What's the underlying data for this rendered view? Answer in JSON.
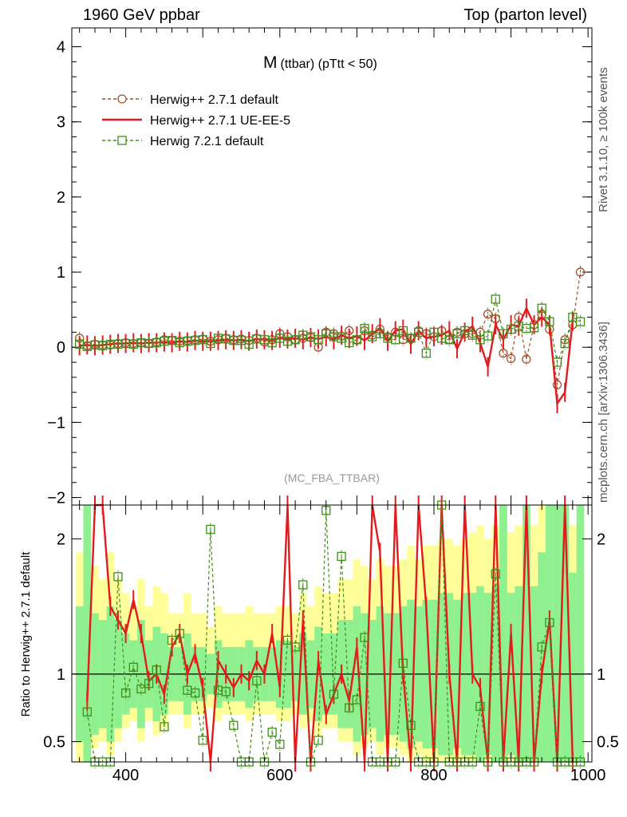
{
  "header": {
    "left": "1960 GeV ppbar",
    "right": "Top (parton level)",
    "side_top": "Rivet 3.1.10, ≥ 100k events",
    "side_bottom": "mcplots.cern.ch [arXiv:1306.3436]"
  },
  "colors": {
    "hpp_default": "#a0522d",
    "hpp_ueee5": "#e41a1c",
    "h7_default": "#3f8f1a",
    "band_yellow": "#ffff99",
    "band_green": "#8ef08e"
  },
  "chart_data": [
    {
      "type": "line",
      "title": "M (ttbar) (pTtt < 50)",
      "title_main": "M",
      "title_sub": "(ttbar) (pTtt < 50)",
      "watermark": "(MC_FBA_TTBAR)",
      "xlim": [
        330,
        1005
      ],
      "ylim": [
        -2.1,
        4.25
      ],
      "yticks": [
        -2,
        -1,
        0,
        1,
        2,
        3,
        4
      ],
      "ytick_labels": [
        "−2",
        "−1",
        "0",
        "1",
        "2",
        "3",
        "4"
      ],
      "legend_position": "top-left",
      "series": [
        {
          "name": "Herwig++ 2.7.1 default",
          "style": "dashed-circle",
          "color": "#a0522d",
          "x": [
            340,
            350,
            360,
            370,
            380,
            390,
            400,
            410,
            420,
            430,
            440,
            450,
            460,
            470,
            480,
            490,
            500,
            510,
            520,
            530,
            540,
            550,
            560,
            570,
            580,
            590,
            600,
            610,
            620,
            630,
            640,
            650,
            660,
            670,
            680,
            690,
            700,
            710,
            720,
            730,
            740,
            750,
            760,
            770,
            780,
            790,
            800,
            810,
            820,
            830,
            840,
            850,
            860,
            870,
            880,
            890,
            900,
            910,
            920,
            930,
            940,
            950,
            960,
            970,
            980,
            990
          ],
          "y": [
            0.12,
            0.02,
            0.04,
            0.03,
            0.03,
            0.05,
            0.06,
            0.05,
            0.06,
            0.05,
            0.07,
            0.1,
            0.09,
            0.08,
            0.09,
            0.1,
            0.11,
            0.08,
            0.1,
            0.12,
            0.1,
            0.11,
            0.09,
            0.12,
            0.07,
            0.1,
            0.18,
            0.14,
            0.1,
            0.12,
            0.13,
            0.0,
            0.2,
            0.18,
            0.15,
            0.22,
            0.1,
            0.22,
            0.16,
            0.24,
            0.14,
            0.2,
            0.1,
            0.12,
            0.22,
            0.18,
            0.14,
            0.22,
            0.1,
            0.2,
            0.18,
            0.18,
            0.2,
            0.44,
            0.38,
            -0.08,
            -0.15,
            0.4,
            -0.16,
            0.3,
            0.44,
            0.24,
            -0.5,
            0.1,
            0.3,
            1.0
          ]
        },
        {
          "name": "Herwig++ 2.7.1 UE-EE-5",
          "style": "solid",
          "color": "#e41a1c",
          "x": [
            340,
            350,
            360,
            370,
            380,
            390,
            400,
            410,
            420,
            430,
            440,
            450,
            460,
            470,
            480,
            490,
            500,
            510,
            520,
            530,
            540,
            550,
            560,
            570,
            580,
            590,
            600,
            610,
            620,
            630,
            640,
            650,
            660,
            670,
            680,
            690,
            700,
            710,
            720,
            730,
            740,
            750,
            760,
            770,
            780,
            790,
            800,
            810,
            820,
            830,
            840,
            850,
            860,
            870,
            880,
            890,
            900,
            910,
            920,
            930,
            940,
            950,
            960,
            970,
            980
          ],
          "y": [
            0.02,
            0.03,
            0.02,
            0.03,
            0.04,
            0.05,
            0.05,
            0.06,
            0.05,
            0.06,
            0.06,
            0.07,
            0.06,
            0.08,
            0.07,
            0.09,
            0.08,
            0.08,
            0.09,
            0.1,
            0.09,
            0.1,
            0.08,
            0.11,
            0.1,
            0.09,
            0.12,
            0.11,
            0.12,
            0.1,
            0.13,
            0.11,
            0.14,
            0.1,
            0.16,
            0.12,
            0.15,
            0.09,
            0.18,
            0.26,
            0.08,
            0.22,
            0.24,
            0.04,
            0.22,
            0.12,
            0.14,
            0.16,
            0.22,
            -0.02,
            0.2,
            0.28,
            0.06,
            -0.26,
            0.3,
            0.1,
            0.3,
            0.28,
            0.52,
            0.3,
            0.4,
            0.3,
            -0.75,
            -0.6,
            0.35
          ]
        },
        {
          "name": "Herwig 7.2.1 default",
          "style": "dashed-square",
          "color": "#3f8f1a",
          "x": [
            340,
            350,
            360,
            370,
            380,
            390,
            400,
            410,
            420,
            430,
            440,
            450,
            460,
            470,
            480,
            490,
            500,
            510,
            520,
            530,
            540,
            550,
            560,
            570,
            580,
            590,
            600,
            610,
            620,
            630,
            640,
            650,
            660,
            670,
            680,
            690,
            700,
            710,
            720,
            730,
            740,
            750,
            760,
            770,
            780,
            790,
            800,
            810,
            820,
            830,
            840,
            850,
            860,
            870,
            880,
            890,
            900,
            910,
            920,
            930,
            940,
            950,
            960,
            970,
            980,
            990
          ],
          "y": [
            0.04,
            0.01,
            0.03,
            0.02,
            0.04,
            0.04,
            0.05,
            0.04,
            0.06,
            0.05,
            0.06,
            0.08,
            0.09,
            0.06,
            0.08,
            0.09,
            0.1,
            0.05,
            0.12,
            0.11,
            0.09,
            0.09,
            0.04,
            0.11,
            0.1,
            0.06,
            0.12,
            0.08,
            0.1,
            0.16,
            0.14,
            0.1,
            0.18,
            0.14,
            0.12,
            0.06,
            0.1,
            0.25,
            0.14,
            0.18,
            0.12,
            0.1,
            0.22,
            0.12,
            0.2,
            -0.08,
            0.2,
            0.12,
            0.1,
            0.18,
            0.22,
            0.16,
            0.1,
            0.15,
            0.64,
            0.18,
            0.24,
            0.28,
            0.25,
            0.26,
            0.52,
            0.34,
            -0.2,
            0.05,
            0.4,
            0.34
          ]
        }
      ]
    },
    {
      "type": "line",
      "title": "",
      "ylabel": "Ratio to Herwig++ 2.7.1 default",
      "xlabel": "",
      "xlim": [
        330,
        1005
      ],
      "ylim": [
        0.35,
        2.25
      ],
      "xticks": [
        400,
        600,
        800,
        1000
      ],
      "xtick_labels": [
        "400",
        "600",
        "800",
        "1000"
      ],
      "yticks": [
        0.5,
        1,
        2
      ],
      "ytick_labels": [
        "0.5",
        "1",
        "2"
      ],
      "bands": {
        "x": [
          340,
          350,
          360,
          370,
          380,
          390,
          400,
          410,
          420,
          430,
          440,
          450,
          460,
          470,
          480,
          490,
          500,
          510,
          520,
          530,
          540,
          550,
          560,
          570,
          580,
          590,
          600,
          610,
          620,
          630,
          640,
          650,
          660,
          670,
          680,
          690,
          700,
          710,
          720,
          730,
          740,
          750,
          760,
          770,
          780,
          790,
          800,
          810,
          820,
          830,
          840,
          850,
          860,
          870,
          880,
          890,
          900,
          910,
          920,
          930,
          940,
          950,
          960,
          970,
          980,
          990
        ],
        "green_lo": [
          0.5,
          0.35,
          0.55,
          0.6,
          0.5,
          0.6,
          0.7,
          0.75,
          0.6,
          0.75,
          0.65,
          0.7,
          0.8,
          0.8,
          0.7,
          0.8,
          0.8,
          0.85,
          0.75,
          0.8,
          0.8,
          0.8,
          0.75,
          0.8,
          0.8,
          0.8,
          0.75,
          0.75,
          0.8,
          0.7,
          0.75,
          0.65,
          0.7,
          0.7,
          0.6,
          0.6,
          0.5,
          0.55,
          0.6,
          0.5,
          0.55,
          0.55,
          0.5,
          0.45,
          0.5,
          0.45,
          0.45,
          0.4,
          0.4,
          0.45,
          0.4,
          0.4,
          0.35,
          0.4,
          0.35,
          0.35,
          0.4,
          0.35,
          0.35,
          0.35,
          0.35,
          0.35,
          0.35,
          0.35,
          0.35,
          0.35
        ],
        "green_hi": [
          1.5,
          2.25,
          1.45,
          1.4,
          1.5,
          1.4,
          1.3,
          1.25,
          1.4,
          1.25,
          1.35,
          1.3,
          1.2,
          1.2,
          1.3,
          1.2,
          1.2,
          1.15,
          1.25,
          1.2,
          1.2,
          1.2,
          1.25,
          1.2,
          1.2,
          1.2,
          1.25,
          1.25,
          1.2,
          1.3,
          1.25,
          1.35,
          1.3,
          1.3,
          1.4,
          1.4,
          1.5,
          1.45,
          1.4,
          1.5,
          1.45,
          1.45,
          1.5,
          1.55,
          1.5,
          1.55,
          1.55,
          1.6,
          1.6,
          1.55,
          1.6,
          1.6,
          1.65,
          1.6,
          1.65,
          2.25,
          1.6,
          1.65,
          2.25,
          1.65,
          1.9,
          2.25,
          2.25,
          2.25,
          1.75,
          2.25
        ],
        "yellow_lo": [
          0.35,
          0.35,
          0.45,
          0.5,
          0.4,
          0.5,
          0.6,
          0.65,
          0.5,
          0.65,
          0.55,
          0.6,
          0.7,
          0.7,
          0.6,
          0.7,
          0.7,
          0.75,
          0.65,
          0.7,
          0.7,
          0.7,
          0.65,
          0.7,
          0.7,
          0.7,
          0.65,
          0.65,
          0.7,
          0.6,
          0.65,
          0.55,
          0.6,
          0.6,
          0.5,
          0.5,
          0.4,
          0.45,
          0.5,
          0.4,
          0.45,
          0.45,
          0.4,
          0.35,
          0.4,
          0.35,
          0.35,
          0.35,
          0.35,
          0.35,
          0.35,
          0.35,
          0.35,
          0.35,
          0.35,
          0.35,
          0.35,
          0.35,
          0.35,
          0.35,
          0.35,
          0.35,
          0.35,
          0.35,
          0.35,
          0.35
        ],
        "yellow_hi": [
          1.9,
          2.25,
          1.8,
          1.7,
          1.9,
          1.7,
          1.6,
          1.5,
          1.7,
          1.5,
          1.65,
          1.6,
          1.45,
          1.45,
          1.6,
          1.45,
          1.45,
          1.35,
          1.5,
          1.45,
          1.45,
          1.45,
          1.5,
          1.45,
          1.45,
          1.45,
          1.5,
          1.5,
          1.45,
          1.6,
          1.5,
          1.65,
          1.6,
          1.6,
          1.7,
          1.7,
          1.85,
          1.8,
          1.7,
          1.85,
          1.8,
          1.8,
          1.85,
          1.95,
          1.85,
          1.95,
          1.95,
          2.0,
          2.0,
          1.95,
          2.0,
          2.05,
          2.1,
          2.0,
          2.1,
          2.25,
          2.05,
          2.1,
          2.25,
          2.1,
          2.25,
          2.25,
          2.25,
          2.25,
          2.1,
          2.25
        ]
      },
      "series": [
        {
          "name": "Herwig++ 2.7.1 UE-EE-5",
          "color": "#e41a1c",
          "style": "solid",
          "x": [
            350,
            360,
            370,
            380,
            390,
            400,
            410,
            420,
            430,
            440,
            450,
            460,
            470,
            480,
            490,
            500,
            510,
            520,
            530,
            540,
            550,
            560,
            570,
            580,
            590,
            600,
            610,
            620,
            630,
            640,
            650,
            660,
            670,
            680,
            690,
            700,
            710,
            720,
            730,
            740,
            750,
            760,
            770,
            780,
            790,
            800,
            810,
            820,
            830,
            840,
            850,
            860,
            870,
            880,
            890,
            900,
            910,
            920,
            930,
            940,
            950,
            960,
            970,
            980
          ],
          "y": [
            0.8,
            2.25,
            2.25,
            1.5,
            1.4,
            1.3,
            1.55,
            1.3,
            0.95,
            1.0,
            0.85,
            1.2,
            1.3,
            1.0,
            1.15,
            0.9,
            0.35,
            1.1,
            1.0,
            0.9,
            1.0,
            0.95,
            1.1,
            1.0,
            1.3,
            0.9,
            2.25,
            0.35,
            1.4,
            0.35,
            1.1,
            0.7,
            0.85,
            1.0,
            0.8,
            1.2,
            0.35,
            2.25,
            1.9,
            0.35,
            2.25,
            1.0,
            0.35,
            2.25,
            1.5,
            0.35,
            2.25,
            1.0,
            0.35,
            2.25,
            1.0,
            0.9,
            0.35,
            2.25,
            0.35,
            1.3,
            0.35,
            2.25,
            0.35,
            1.0,
            1.4,
            0.35,
            2.25,
            0.35
          ]
        },
        {
          "name": "Herwig 7.2.1 default",
          "color": "#3f8f1a",
          "style": "dashed-square",
          "x": [
            350,
            360,
            370,
            380,
            390,
            400,
            410,
            420,
            430,
            440,
            450,
            460,
            470,
            480,
            490,
            500,
            510,
            520,
            530,
            540,
            550,
            560,
            570,
            580,
            590,
            600,
            610,
            620,
            630,
            640,
            650,
            660,
            670,
            680,
            690,
            700,
            710,
            720,
            730,
            740,
            750,
            760,
            770,
            780,
            790,
            800,
            810,
            820,
            830,
            840,
            850,
            860,
            870,
            880,
            890,
            900,
            910,
            920,
            930,
            940,
            950,
            960,
            970,
            980,
            990
          ],
          "y": [
            0.72,
            0.35,
            0.35,
            0.35,
            1.72,
            0.86,
            1.05,
            0.89,
            0.93,
            1.03,
            0.61,
            1.25,
            1.3,
            0.88,
            0.86,
            0.51,
            2.07,
            0.88,
            0.87,
            0.62,
            0.35,
            0.35,
            0.95,
            0.35,
            0.57,
            0.48,
            1.25,
            1.2,
            1.66,
            0.35,
            0.51,
            2.21,
            0.85,
            1.87,
            0.75,
            0.81,
            1.27,
            0.35,
            0.35,
            0.35,
            0.35,
            1.08,
            0.62,
            0.35,
            0.35,
            0.35,
            2.25,
            0.35,
            0.35,
            0.35,
            0.35,
            0.76,
            0.35,
            1.74,
            0.35,
            0.35,
            0.35,
            0.35,
            0.35,
            1.2,
            1.38,
            0.35,
            0.35,
            0.35,
            0.35
          ]
        }
      ]
    }
  ]
}
